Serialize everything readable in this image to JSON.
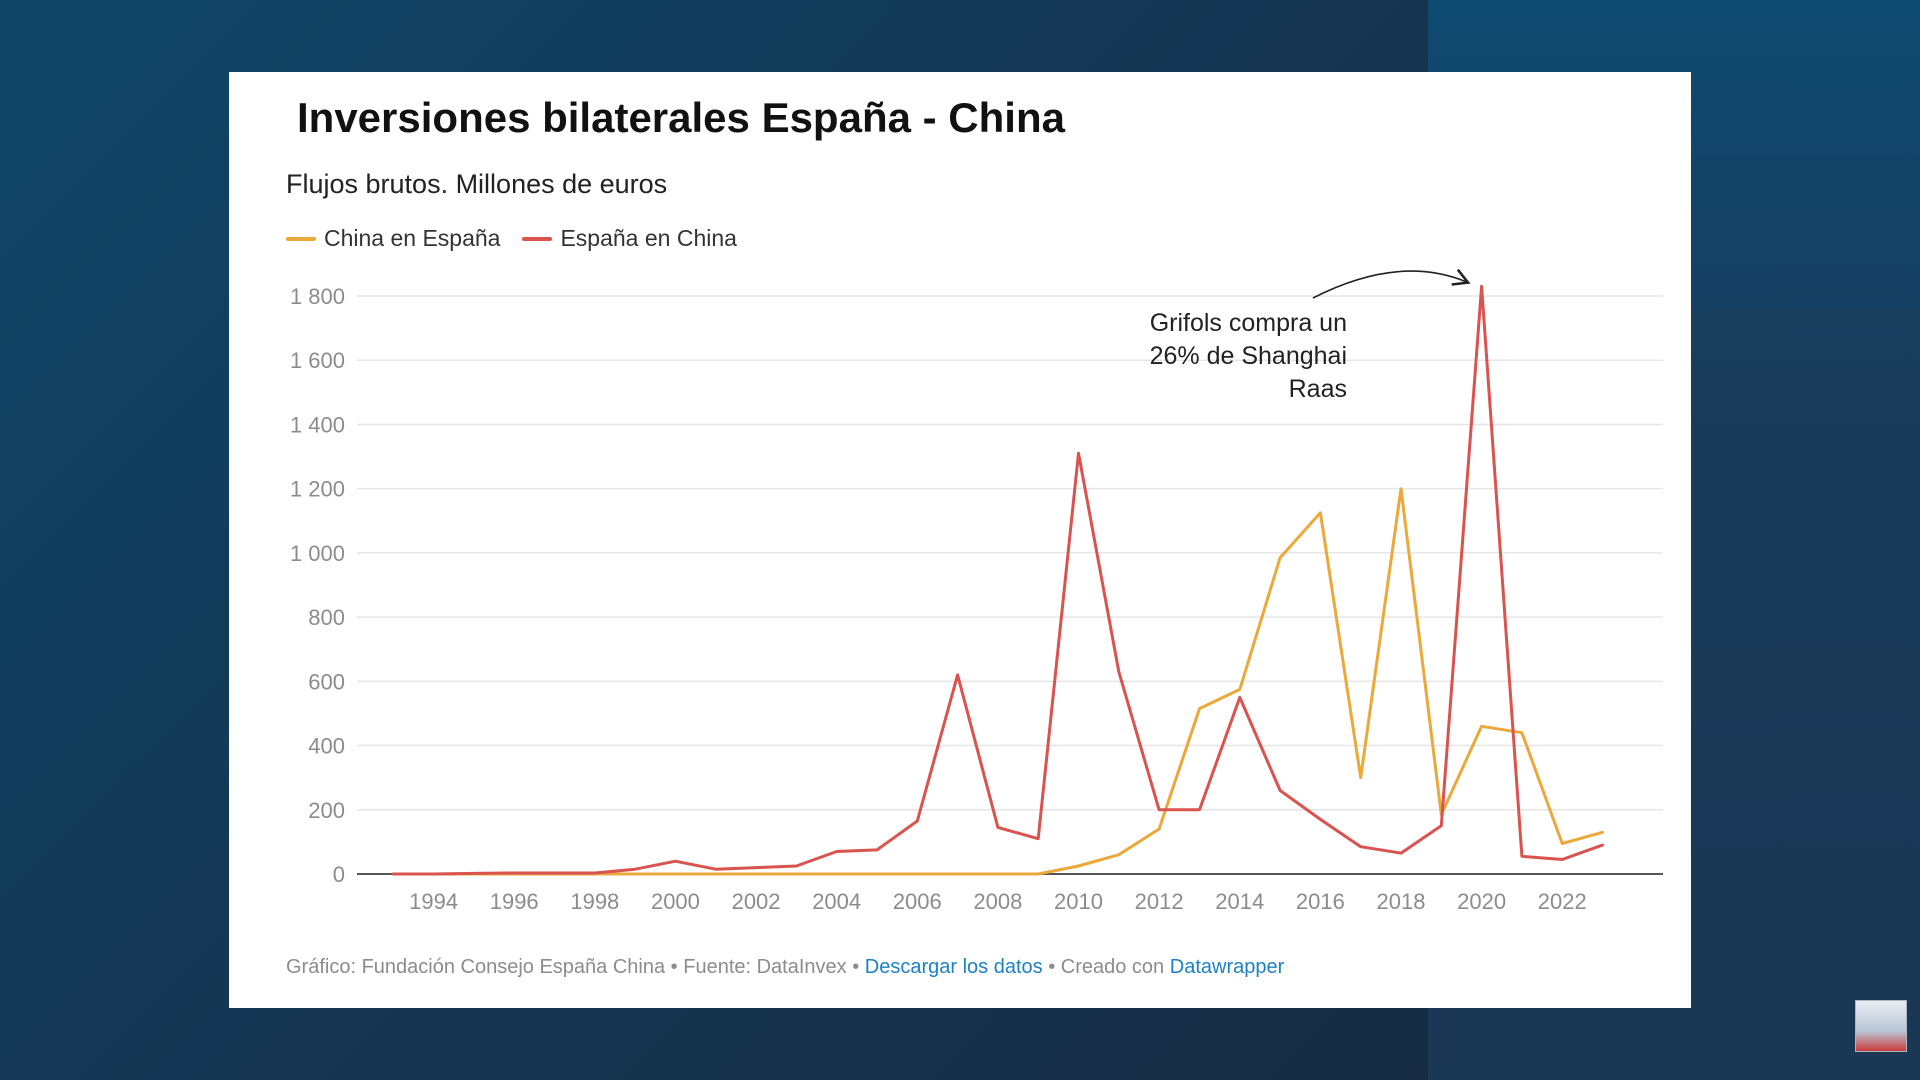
{
  "page": {
    "title": "Inversiones bilaterales España - China",
    "subtitle": "Flujos brutos. Millones de euros"
  },
  "legend": [
    {
      "label": "China en España",
      "color": "#eaa93a"
    },
    {
      "label": "España en China",
      "color": "#d9534f"
    }
  ],
  "annotation": {
    "lines": [
      "Grifols compra un",
      "26% de Shanghai",
      "Raas"
    ],
    "points_to_year": 2020
  },
  "footer": {
    "prefix": "Gráfico: Fundación Consejo España China • Fuente: DataInvex •",
    "download_link": "Descargar los datos",
    "middle": "• Creado con",
    "datawrapper_link": "Datawrapper"
  },
  "colors": {
    "grid": "#e6e6e6",
    "axis": "#555555",
    "tick_label": "#8c8c8c",
    "china_en_espana": "#eaa93a",
    "espana_en_china": "#d9534f"
  },
  "chart_data": {
    "type": "line",
    "title": "Inversiones bilaterales España - China",
    "subtitle": "Flujos brutos. Millones de euros",
    "xlabel": "",
    "ylabel": "",
    "x": [
      1993,
      1994,
      1995,
      1996,
      1997,
      1998,
      1999,
      2000,
      2001,
      2002,
      2003,
      2004,
      2005,
      2006,
      2007,
      2008,
      2009,
      2010,
      2011,
      2012,
      2013,
      2014,
      2015,
      2016,
      2017,
      2018,
      2019,
      2020,
      2021,
      2022,
      2023
    ],
    "xticks": [
      1994,
      1996,
      1998,
      2000,
      2002,
      2004,
      2006,
      2008,
      2010,
      2012,
      2014,
      2016,
      2018,
      2020,
      2022
    ],
    "yticks": [
      0,
      200,
      400,
      600,
      800,
      1000,
      1200,
      1400,
      1600,
      1800
    ],
    "ytick_labels": [
      "0",
      "200",
      "400",
      "600",
      "800",
      "1 000",
      "1 200",
      "1 400",
      "1 600",
      "1 800"
    ],
    "xlim": [
      1992.1,
      2024.5
    ],
    "ylim": [
      0,
      1800
    ],
    "grid": true,
    "legend_position": "top-left",
    "series": [
      {
        "name": "China en España",
        "color": "#eaa93a",
        "values": [
          0,
          0,
          0,
          0,
          0,
          0,
          0,
          0,
          0,
          0,
          0,
          0,
          0,
          0,
          0,
          0,
          0,
          25,
          60,
          140,
          515,
          575,
          985,
          1125,
          300,
          1200,
          185,
          460,
          440,
          95,
          130
        ]
      },
      {
        "name": "España en China",
        "color": "#d9534f",
        "values": [
          0,
          0,
          2,
          3,
          3,
          3,
          15,
          40,
          15,
          20,
          25,
          70,
          75,
          165,
          620,
          145,
          110,
          1310,
          630,
          200,
          200,
          550,
          260,
          170,
          85,
          65,
          150,
          1830,
          55,
          45,
          90
        ]
      }
    ]
  }
}
